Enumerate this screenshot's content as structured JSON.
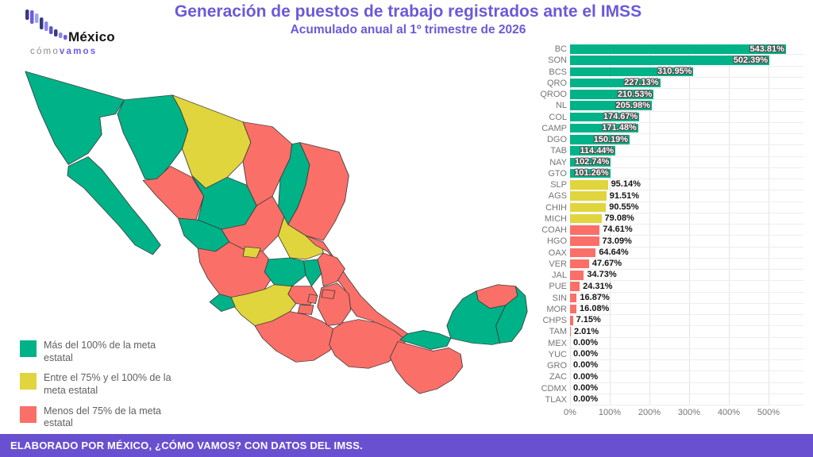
{
  "header": {
    "title": "Generación de puestos de trabajo registrados ante el IMSS",
    "subtitle": "Acumulado anual al 1º trimestre de 2026"
  },
  "logo": {
    "brand": "México",
    "tagline_light": "cómo",
    "tagline_bold": "vamos"
  },
  "legend": {
    "items": [
      {
        "key": "above",
        "label": "Más del 100% de la meta estatal",
        "color": "#00b287"
      },
      {
        "key": "mid",
        "label": "Entre el 75% y el 100% de la meta estatal",
        "color": "#e0d53c"
      },
      {
        "key": "below",
        "label": "Menos del 75% de la meta estatal",
        "color": "#fa6f68"
      }
    ]
  },
  "chart_data": {
    "type": "bar",
    "orientation": "horizontal",
    "title": "Generación de puestos de trabajo registrados ante el IMSS",
    "subtitle": "Acumulado anual al 1º trimestre de 2026",
    "unit": "%",
    "scale_max": 588,
    "xlim": [
      0,
      588
    ],
    "grid": true,
    "x_ticks": [
      {
        "label": "0%",
        "value": 0
      },
      {
        "label": "100%",
        "value": 100
      },
      {
        "label": "200%",
        "value": 200
      },
      {
        "label": "300%",
        "value": 300
      },
      {
        "label": "400%",
        "value": 400
      },
      {
        "label": "500%",
        "value": 500
      }
    ],
    "categories": [
      "BC",
      "SON",
      "BCS",
      "QRO",
      "QROO",
      "NL",
      "COL",
      "CAMP",
      "DGO",
      "TAB",
      "NAY",
      "GTO",
      "SLP",
      "AGS",
      "CHIH",
      "MICH",
      "COAH",
      "HGO",
      "OAX",
      "VER",
      "JAL",
      "PUE",
      "SIN",
      "MOR",
      "CHPS",
      "TAM",
      "MEX",
      "YUC",
      "GRO",
      "ZAC",
      "CDMX",
      "TLAX"
    ],
    "values": [
      543.81,
      502.39,
      310.95,
      227.13,
      210.53,
      205.98,
      174.67,
      171.48,
      150.19,
      114.44,
      102.74,
      101.26,
      95.14,
      91.51,
      90.55,
      79.08,
      74.61,
      73.09,
      64.64,
      47.67,
      34.73,
      24.31,
      16.87,
      16.08,
      7.15,
      2.01,
      0.0,
      0.0,
      0.0,
      0.0,
      0.0,
      0.0
    ],
    "states": [
      {
        "state": "BC",
        "value": 543.81,
        "display": "543.81%",
        "category": "above"
      },
      {
        "state": "SON",
        "value": 502.39,
        "display": "502.39%",
        "category": "above"
      },
      {
        "state": "BCS",
        "value": 310.95,
        "display": "310.95%",
        "category": "above"
      },
      {
        "state": "QRO",
        "value": 227.13,
        "display": "227.13%",
        "category": "above"
      },
      {
        "state": "QROO",
        "value": 210.53,
        "display": "210.53%",
        "category": "above"
      },
      {
        "state": "NL",
        "value": 205.98,
        "display": "205.98%",
        "category": "above"
      },
      {
        "state": "COL",
        "value": 174.67,
        "display": "174.67%",
        "category": "above"
      },
      {
        "state": "CAMP",
        "value": 171.48,
        "display": "171.48%",
        "category": "above"
      },
      {
        "state": "DGO",
        "value": 150.19,
        "display": "150.19%",
        "category": "above"
      },
      {
        "state": "TAB",
        "value": 114.44,
        "display": "114.44%",
        "category": "above"
      },
      {
        "state": "NAY",
        "value": 102.74,
        "display": "102.74%",
        "category": "above"
      },
      {
        "state": "GTO",
        "value": 101.26,
        "display": "101.26%",
        "category": "above"
      },
      {
        "state": "SLP",
        "value": 95.14,
        "display": "95.14%",
        "category": "mid"
      },
      {
        "state": "AGS",
        "value": 91.51,
        "display": "91.51%",
        "category": "mid"
      },
      {
        "state": "CHIH",
        "value": 90.55,
        "display": "90.55%",
        "category": "mid"
      },
      {
        "state": "MICH",
        "value": 79.08,
        "display": "79.08%",
        "category": "mid"
      },
      {
        "state": "COAH",
        "value": 74.61,
        "display": "74.61%",
        "category": "below"
      },
      {
        "state": "HGO",
        "value": 73.09,
        "display": "73.09%",
        "category": "below"
      },
      {
        "state": "OAX",
        "value": 64.64,
        "display": "64.64%",
        "category": "below"
      },
      {
        "state": "VER",
        "value": 47.67,
        "display": "47.67%",
        "category": "below"
      },
      {
        "state": "JAL",
        "value": 34.73,
        "display": "34.73%",
        "category": "below"
      },
      {
        "state": "PUE",
        "value": 24.31,
        "display": "24.31%",
        "category": "below"
      },
      {
        "state": "SIN",
        "value": 16.87,
        "display": "16.87%",
        "category": "below"
      },
      {
        "state": "MOR",
        "value": 16.08,
        "display": "16.08%",
        "category": "below"
      },
      {
        "state": "CHPS",
        "value": 7.15,
        "display": "7.15%",
        "category": "below"
      },
      {
        "state": "TAM",
        "value": 2.01,
        "display": "2.01%",
        "category": "below"
      },
      {
        "state": "MEX",
        "value": 0.0,
        "display": "0.00%",
        "category": "below"
      },
      {
        "state": "YUC",
        "value": 0.0,
        "display": "0.00%",
        "category": "below"
      },
      {
        "state": "GRO",
        "value": 0.0,
        "display": "0.00%",
        "category": "below"
      },
      {
        "state": "ZAC",
        "value": 0.0,
        "display": "0.00%",
        "category": "below"
      },
      {
        "state": "CDMX",
        "value": 0.0,
        "display": "0.00%",
        "category": "below"
      },
      {
        "state": "TLAX",
        "value": 0.0,
        "display": "0.00%",
        "category": "below"
      }
    ]
  },
  "map": {
    "region": "México",
    "state_categories": {
      "BC": "above",
      "BCS": "above",
      "SON": "above",
      "CHIH": "mid",
      "SIN": "below",
      "DGO": "above",
      "COAH": "below",
      "NL": "above",
      "TAM": "below",
      "ZAC": "below",
      "SLP": "mid",
      "NAY": "above",
      "JAL": "below",
      "AGS": "mid",
      "GTO": "above",
      "QRO": "above",
      "HGO": "below",
      "MICH": "mid",
      "COL": "above",
      "MEX": "below",
      "CDMX": "below",
      "TLAX": "below",
      "MOR": "below",
      "PUE": "below",
      "VER": "below",
      "GRO": "below",
      "OAX": "below",
      "CHPS": "below",
      "TAB": "above",
      "CAMP": "above",
      "YUC": "below",
      "QROO": "above"
    }
  },
  "footer": {
    "text": "ELABORADO POR MÉXICO, ¿CÓMO VAMOS? CON DATOS DEL IMSS."
  }
}
